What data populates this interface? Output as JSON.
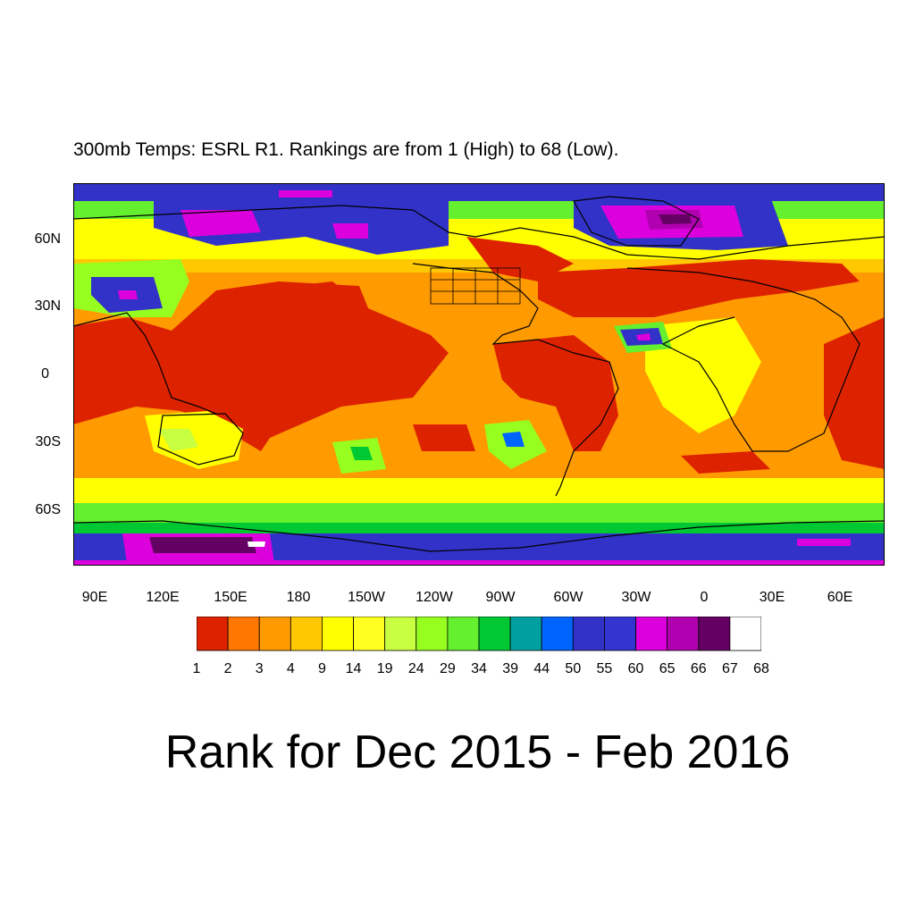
{
  "subtitle": "300mb Temps: ESRL R1. Rankings are from 1 (High) to 68 (Low).",
  "title": "Rank for Dec 2015 - Feb 2016",
  "map": {
    "projection": "cylindrical-equidistant",
    "lon_range": [
      75,
      255
    ],
    "lat_range": [
      -85,
      85
    ],
    "lat_ticks": [
      "60N",
      "30N",
      "0",
      "30S",
      "60S"
    ],
    "lon_ticks": [
      "90E",
      "120E",
      "150E",
      "180",
      "150W",
      "120W",
      "90W",
      "60W",
      "30W",
      "0",
      "30E",
      "60E"
    ]
  },
  "colorbar": {
    "labels": [
      "1",
      "2",
      "3",
      "4",
      "9",
      "14",
      "19",
      "24",
      "29",
      "34",
      "39",
      "44",
      "50",
      "55",
      "60",
      "65",
      "66",
      "67",
      "68"
    ],
    "colors": [
      "#dd2200",
      "#ff7700",
      "#ff9a00",
      "#ffc800",
      "#ffff00",
      "#ffff22",
      "#c8ff40",
      "#96ff20",
      "#64f02e",
      "#00c832",
      "#00a0a0",
      "#0064ff",
      "#3232c8",
      "#3434d0",
      "#dc00dc",
      "#b000b0",
      "#640064",
      "#ffffff"
    ]
  }
}
